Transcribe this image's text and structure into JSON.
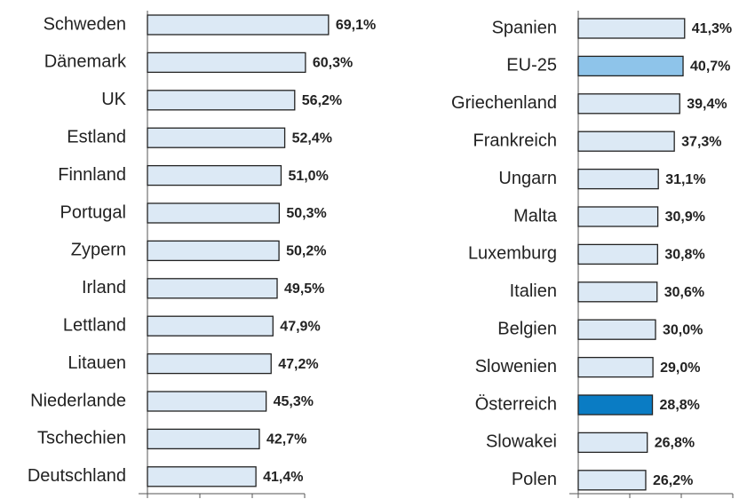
{
  "chart_data": [
    {
      "type": "barh",
      "categories": [
        "Schweden",
        "Dänemark",
        "UK",
        "Estland",
        "Finnland",
        "Portugal",
        "Zypern",
        "Irland",
        "Lettland",
        "Litauen",
        "Niederlande",
        "Tschechien",
        "Deutschland"
      ],
      "values": [
        69.1,
        60.3,
        56.2,
        52.4,
        51.0,
        50.3,
        50.2,
        49.5,
        47.9,
        47.2,
        45.3,
        42.7,
        41.4
      ],
      "value_labels": [
        "69,1%",
        "60,3%",
        "56,2%",
        "52,4%",
        "51,0%",
        "50,3%",
        "50,2%",
        "49,5%",
        "47,9%",
        "47,2%",
        "45,3%",
        "42,7%",
        "41,4%"
      ],
      "colors": [
        "#dce9f5",
        "#dce9f5",
        "#dce9f5",
        "#dce9f5",
        "#dce9f5",
        "#dce9f5",
        "#dce9f5",
        "#dce9f5",
        "#dce9f5",
        "#dce9f5",
        "#dce9f5",
        "#dce9f5",
        "#dce9f5"
      ],
      "xlim": [
        0,
        60
      ],
      "xticks": [
        0,
        20,
        40,
        60
      ]
    },
    {
      "type": "barh",
      "categories": [
        "Spanien",
        "EU-25",
        "Griechenland",
        "Frankreich",
        "Ungarn",
        "Malta",
        "Luxemburg",
        "Italien",
        "Belgien",
        "Slowenien",
        "Österreich",
        "Slowakei",
        "Polen"
      ],
      "values": [
        41.3,
        40.7,
        39.4,
        37.3,
        31.1,
        30.9,
        30.8,
        30.6,
        30.0,
        29.0,
        28.8,
        26.8,
        26.2
      ],
      "value_labels": [
        "41,3%",
        "40,7%",
        "39,4%",
        "37,3%",
        "31,1%",
        "30,9%",
        "30,8%",
        "30,6%",
        "30,0%",
        "29,0%",
        "28,8%",
        "26,8%",
        "26,2%"
      ],
      "colors": [
        "#dce9f5",
        "#8ec4ea",
        "#dce9f5",
        "#dce9f5",
        "#dce9f5",
        "#dce9f5",
        "#dce9f5",
        "#dce9f5",
        "#dce9f5",
        "#dce9f5",
        "#0a7cc4",
        "#dce9f5",
        "#dce9f5"
      ],
      "xlim": [
        0,
        60
      ],
      "xticks": [
        0,
        20,
        40,
        60
      ]
    }
  ]
}
